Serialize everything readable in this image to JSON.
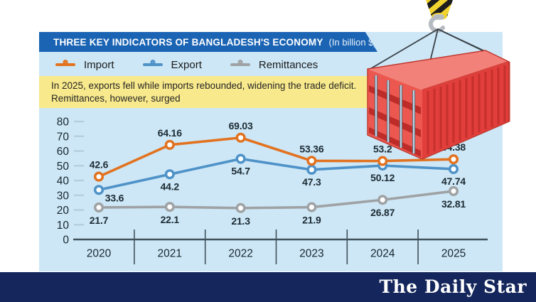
{
  "banner": {
    "title": "THREE KEY INDICATORS OF BANGLADESH'S ECONOMY",
    "unit_note": "(In billion $)"
  },
  "legend": {
    "items": [
      {
        "label": "Import",
        "color": "#e2721f"
      },
      {
        "label": "Export",
        "color": "#4e92c8"
      },
      {
        "label": "Remittances",
        "color": "#9fa2a4"
      }
    ]
  },
  "annotation": {
    "line1": "In 2025, exports fell while imports rebounded, widening the trade deficit.",
    "line2": "Remittances, however, surged"
  },
  "chart_data": {
    "type": "line",
    "title": "THREE KEY INDICATORS OF BANGLADESH'S ECONOMY",
    "unit": "billion $",
    "categories": [
      "2020",
      "2021",
      "2022",
      "2023",
      "2024",
      "2025"
    ],
    "series": [
      {
        "name": "Import",
        "color": "#e2721f",
        "values": [
          42.6,
          64.16,
          69.03,
          53.36,
          53.2,
          54.38
        ]
      },
      {
        "name": "Export",
        "color": "#4e92c8",
        "values": [
          33.6,
          44.2,
          54.7,
          47.3,
          50.12,
          47.74
        ]
      },
      {
        "name": "Remittances",
        "color": "#9fa2a4",
        "values": [
          21.7,
          22.1,
          21.3,
          21.9,
          26.87,
          32.81
        ]
      }
    ],
    "ylim": [
      0,
      80
    ],
    "yticks": [
      0,
      10,
      20,
      30,
      40,
      50,
      60,
      70,
      80
    ],
    "grid": false,
    "legend_position": "top",
    "data_labels": true
  },
  "footer": {
    "brand": "The Daily Star"
  },
  "colors": {
    "panel": "#cde7f6",
    "banner": "#1b64b4",
    "annotation_bg": "#f8e98c",
    "footer_bg": "#14265b",
    "axis": "#41525b",
    "tick": "#b5cede",
    "text": "#17272f"
  }
}
